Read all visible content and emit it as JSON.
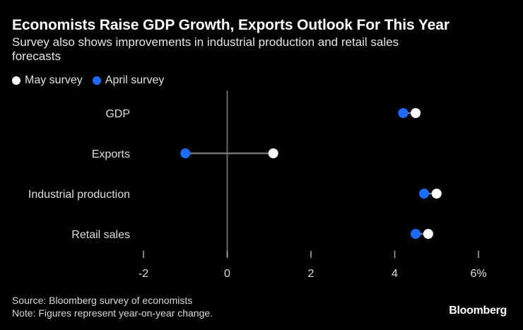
{
  "title": "Economists Raise GDP Growth, Exports Outlook For This Year",
  "subtitle": "Survey also shows improvements in industrial production and retail sales forecasts",
  "chart_data": {
    "type": "scatter",
    "subtype": "dot-plot",
    "categories": [
      "GDP",
      "Exports",
      "Industrial production",
      "Retail sales"
    ],
    "series": [
      {
        "name": "May survey",
        "color": "#ffffff",
        "values": [
          4.5,
          1.1,
          5.0,
          4.8
        ]
      },
      {
        "name": "April survey",
        "color": "#1a6cff",
        "values": [
          4.2,
          -1.0,
          4.7,
          4.5
        ]
      }
    ],
    "xlim": [
      -2,
      6
    ],
    "xticks": [
      -2,
      0,
      2,
      4,
      6
    ],
    "xtick_labels": [
      "-2",
      "0",
      "2",
      "4",
      "6%"
    ],
    "legend_position": "top-left",
    "grid": false
  },
  "footer": {
    "source": "Source: Bloomberg survey of economists",
    "note": "Note: Figures represent year-on-year change.",
    "brand": "Bloomberg"
  }
}
